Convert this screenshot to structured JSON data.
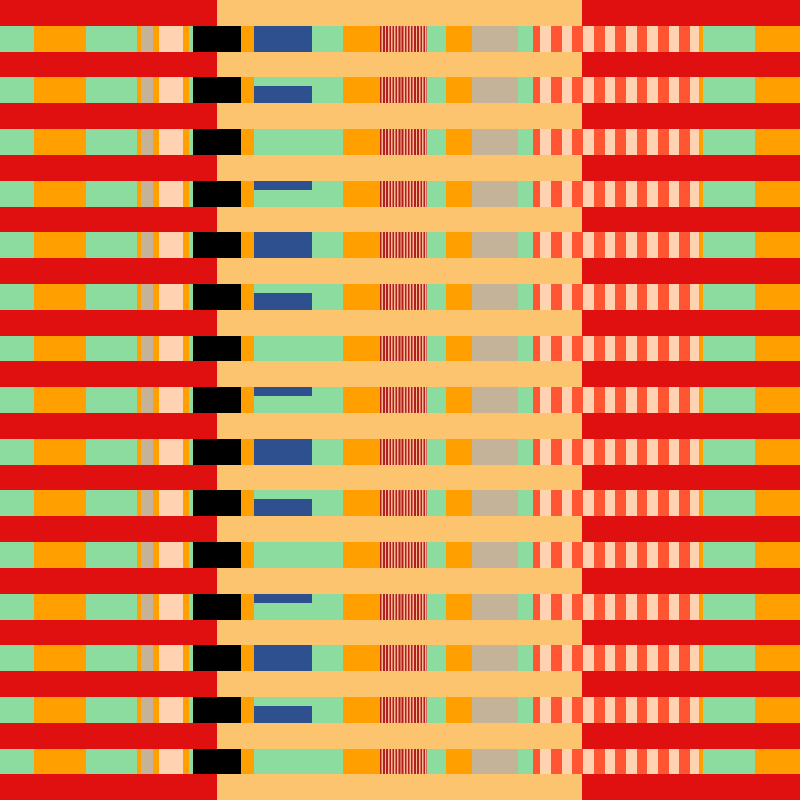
{
  "palette": {
    "red": "#e01010",
    "peach_light": "#fcc46e",
    "green": "#8bdc9e",
    "orange": "#ffa000",
    "tan": "#c5b399",
    "peach": "#ffd2b1",
    "black": "#000000",
    "blue": "#2e508e",
    "dark_red_stripe": "#b02020",
    "stripe_light": "#f7b98f",
    "red_orange": "#ff5533"
  },
  "pattern": {
    "colored_row_count": 15,
    "blue_cycle": [
      "full",
      "bottom",
      "none",
      "top"
    ]
  }
}
